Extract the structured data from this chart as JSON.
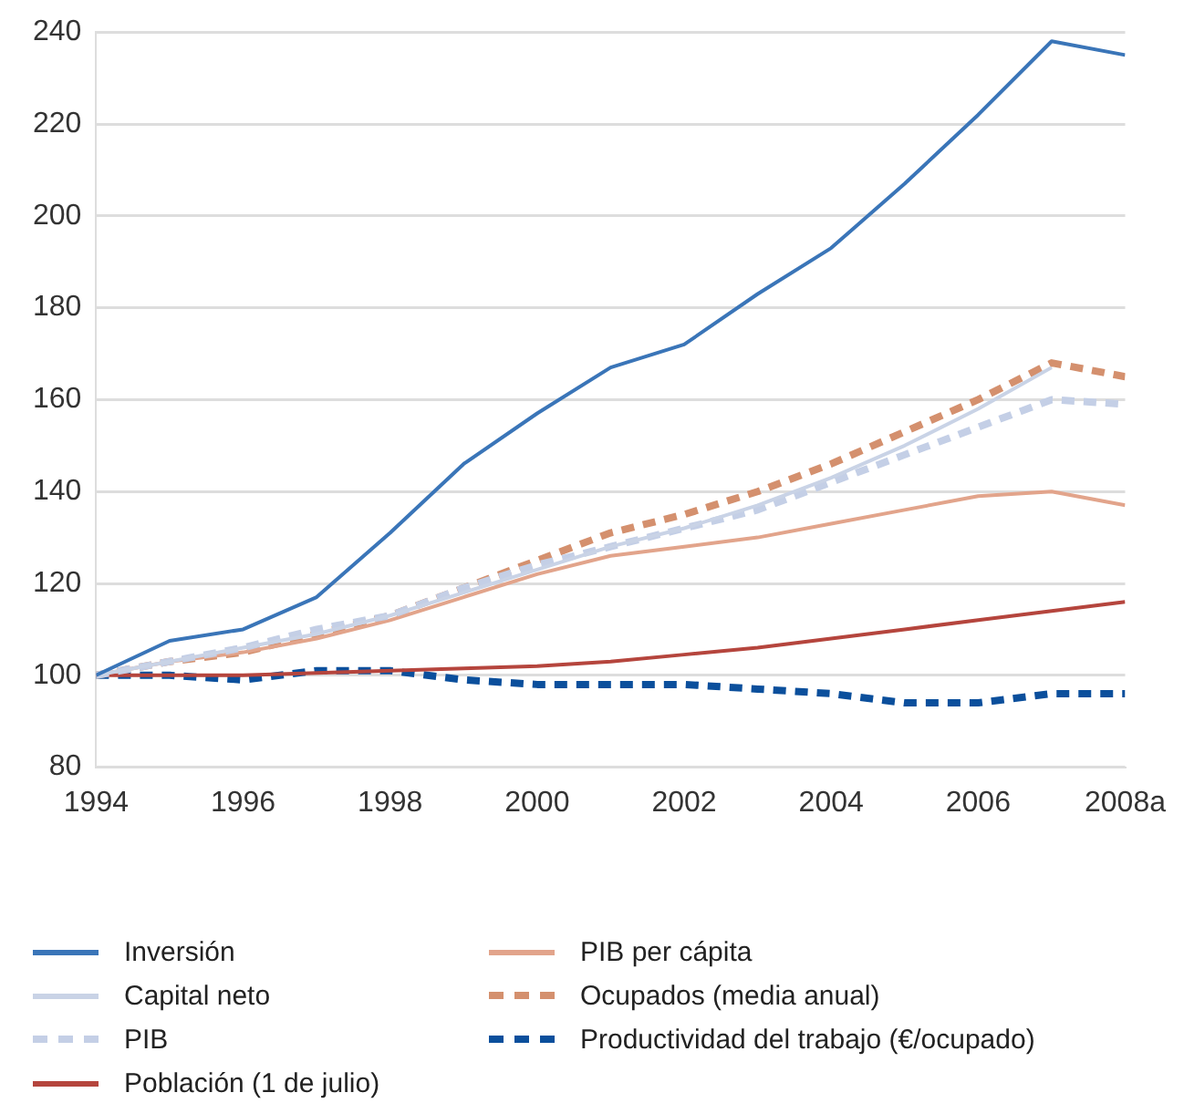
{
  "chart_data": {
    "type": "line",
    "x": [
      1994,
      1995,
      1996,
      1997,
      1998,
      1999,
      2000,
      2001,
      2002,
      2003,
      2004,
      2005,
      2006,
      2007,
      2008
    ],
    "xlim": [
      1994,
      2008
    ],
    "xticks": [
      1994,
      1996,
      1998,
      2000,
      2002,
      2004,
      2006,
      {
        "value": 2008,
        "label": "2008a"
      }
    ],
    "ylim": [
      80,
      240
    ],
    "yticks": [
      80,
      100,
      120,
      140,
      160,
      180,
      200,
      220,
      240
    ],
    "grid": "y",
    "legend": "bottom",
    "marker": "none",
    "series": [
      {
        "name": "Inversión",
        "color": "#3a75b8",
        "line_style": "solid",
        "values": [
          100,
          107.5,
          110,
          117,
          131,
          146,
          157,
          167,
          172,
          183,
          193,
          207,
          222,
          238,
          235
        ]
      },
      {
        "name": "Capital neto",
        "color": "#c9d3e6",
        "line_style": "solid",
        "values": [
          100,
          103,
          106,
          109,
          113,
          118,
          123,
          128,
          132,
          137,
          143,
          150,
          158,
          167,
          null
        ]
      },
      {
        "name": "PIB",
        "color": "#c4cfe6",
        "line_style": "dashed",
        "values": [
          100,
          103,
          106,
          110,
          113,
          119,
          124,
          128,
          132,
          136,
          142,
          148,
          154,
          160,
          159
        ]
      },
      {
        "name": "Población (1 de julio)",
        "color": "#b5453d",
        "line_style": "solid",
        "values": [
          100,
          100,
          100,
          100.5,
          101,
          101.5,
          102,
          103,
          104.5,
          106,
          108,
          110,
          112,
          114,
          116
        ]
      },
      {
        "name": "PIB per cápita",
        "color": "#e2a48b",
        "line_style": "solid",
        "values": [
          100,
          103,
          105,
          108,
          112,
          117,
          122,
          126,
          128,
          130,
          133,
          136,
          139,
          140,
          137
        ]
      },
      {
        "name": "Ocupados (media anual)",
        "color": "#d4906e",
        "line_style": "dashed",
        "values": [
          100,
          103,
          105,
          109,
          113,
          119,
          125,
          131,
          135,
          140,
          146,
          153,
          160,
          168,
          165
        ]
      },
      {
        "name": "Productividad del trabajo (€/ocupado)",
        "color": "#0b4f9c",
        "line_style": "dashed",
        "values": [
          100,
          100,
          99,
          101,
          101,
          99,
          98,
          98,
          98,
          97,
          96,
          94,
          94,
          96,
          96
        ]
      }
    ]
  }
}
